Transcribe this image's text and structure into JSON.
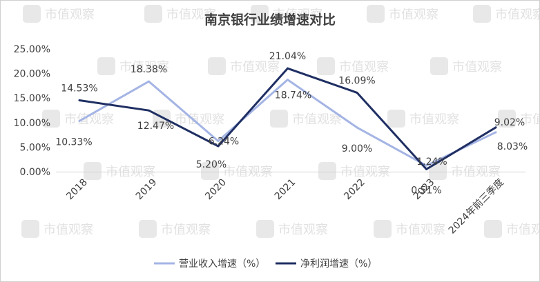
{
  "chart_data": {
    "type": "line",
    "title": "南京银行业绩增速对比",
    "categories": [
      "2018",
      "2019",
      "2020",
      "2021",
      "2022",
      "2023",
      "2024年前三季度"
    ],
    "series": [
      {
        "name": "营业收入增速（%）",
        "color": "#a4b4e4",
        "values": [
          10.33,
          18.38,
          6.24,
          18.74,
          9.0,
          1.24,
          8.03
        ],
        "labels": [
          "10.33%",
          "18.38%",
          "6.24%",
          "18.74%",
          "9.00%",
          "1.24%",
          "8.03%"
        ]
      },
      {
        "name": "净利润增速（%）",
        "color": "#1f2f63",
        "values": [
          14.53,
          12.47,
          5.2,
          21.04,
          16.09,
          0.51,
          9.02
        ],
        "labels": [
          "14.53%",
          "12.47%",
          "5.20%",
          "21.04%",
          "16.09%",
          "0.51%",
          "9.02%"
        ]
      }
    ],
    "yticks": [
      "0.00%",
      "5.00%",
      "10.00%",
      "15.00%",
      "20.00%",
      "25.00%"
    ],
    "ylim": [
      0,
      25
    ],
    "grid": false,
    "legend": "bottom"
  },
  "watermark": {
    "text": "市值观察",
    "icon": "chart-logo-icon"
  }
}
